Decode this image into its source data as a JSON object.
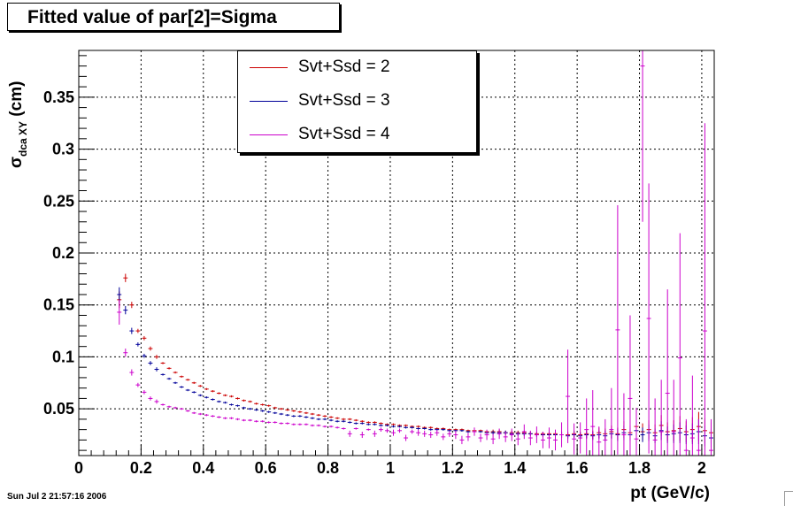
{
  "title": "Fitted value of par[2]=Sigma",
  "footer": "Sun Jul  2 21:57:16 2006",
  "chart_data": {
    "type": "scatter",
    "title": "Fitted value of par[2]=Sigma",
    "xlabel": "pt (GeV/c)",
    "ylabel_main": "σ",
    "ylabel_sub": "dca XY",
    "ylabel_unit": "(cm)",
    "xlim": [
      0,
      2.04
    ],
    "ylim": [
      0.005,
      0.395
    ],
    "xticks": [
      0,
      0.2,
      0.4,
      0.6,
      0.8,
      1,
      1.2,
      1.4,
      1.6,
      1.8,
      2
    ],
    "xtick_labels": [
      "0",
      "0.2",
      "0.4",
      "0.6",
      "0.8",
      "1",
      "1.2",
      "1.4",
      "1.6",
      "1.8",
      "2"
    ],
    "yticks": [
      0.05,
      0.1,
      0.15,
      0.2,
      0.25,
      0.3,
      0.35
    ],
    "ytick_labels": [
      "0.05",
      "0.1",
      "0.15",
      "0.2",
      "0.25",
      "0.3",
      "0.35"
    ],
    "grid": true,
    "legend_position": "top-center",
    "series": [
      {
        "name": "Svt+Ssd = 2",
        "color": "#cc0000",
        "x": [
          0.13,
          0.15,
          0.17,
          0.19,
          0.21,
          0.23,
          0.25,
          0.27,
          0.29,
          0.31,
          0.33,
          0.35,
          0.37,
          0.39,
          0.41,
          0.43,
          0.45,
          0.47,
          0.49,
          0.51,
          0.53,
          0.55,
          0.57,
          0.59,
          0.61,
          0.63,
          0.65,
          0.67,
          0.69,
          0.71,
          0.73,
          0.75,
          0.77,
          0.79,
          0.81,
          0.83,
          0.85,
          0.87,
          0.89,
          0.91,
          0.93,
          0.95,
          0.97,
          0.99,
          1.01,
          1.03,
          1.05,
          1.07,
          1.09,
          1.11,
          1.13,
          1.15,
          1.17,
          1.19,
          1.21,
          1.23,
          1.25,
          1.27,
          1.29,
          1.31,
          1.33,
          1.35,
          1.37,
          1.39,
          1.41,
          1.43,
          1.45,
          1.47,
          1.49,
          1.51,
          1.53,
          1.55,
          1.57,
          1.59,
          1.61,
          1.63,
          1.65,
          1.67,
          1.69,
          1.71,
          1.73,
          1.75,
          1.77,
          1.79,
          1.81,
          1.83,
          1.85,
          1.87,
          1.89,
          1.91,
          1.93,
          1.95,
          1.97,
          1.99,
          2.01,
          2.03
        ],
        "y": [
          0.155,
          0.176,
          0.15,
          0.125,
          0.118,
          0.108,
          0.1,
          0.094,
          0.089,
          0.085,
          0.081,
          0.078,
          0.075,
          0.072,
          0.069,
          0.067,
          0.065,
          0.063,
          0.062,
          0.06,
          0.058,
          0.057,
          0.055,
          0.054,
          0.053,
          0.051,
          0.05,
          0.049,
          0.048,
          0.047,
          0.046,
          0.045,
          0.044,
          0.043,
          0.042,
          0.041,
          0.04,
          0.04,
          0.039,
          0.038,
          0.037,
          0.037,
          0.036,
          0.035,
          0.035,
          0.034,
          0.034,
          0.033,
          0.033,
          0.032,
          0.032,
          0.031,
          0.031,
          0.03,
          0.03,
          0.03,
          0.029,
          0.029,
          0.029,
          0.028,
          0.028,
          0.028,
          0.027,
          0.027,
          0.027,
          0.027,
          0.026,
          0.026,
          0.026,
          0.026,
          0.026,
          0.025,
          0.025,
          0.026,
          0.025,
          0.026,
          0.025,
          0.027,
          0.026,
          0.028,
          0.026,
          0.03,
          0.027,
          0.033,
          0.028,
          0.03,
          0.027,
          0.034,
          0.028,
          0.029,
          0.031,
          0.028,
          0.03,
          0.033,
          0.029,
          0.027
        ],
        "err": [
          0.008,
          0.004,
          0.003,
          0.002,
          0.002,
          0.002,
          0.002,
          0.001,
          0.001,
          0.001,
          0.001,
          0.001,
          0.001,
          0.001,
          0.001,
          0.001,
          0.001,
          0.001,
          0.001,
          0.001,
          0.001,
          0.001,
          0.001,
          0.001,
          0.001,
          0.001,
          0.001,
          0.001,
          0.001,
          0.001,
          0.001,
          0.001,
          0.001,
          0.001,
          0.001,
          0.001,
          0.001,
          0.001,
          0.001,
          0.001,
          0.001,
          0.001,
          0.001,
          0.001,
          0.001,
          0.001,
          0.001,
          0.001,
          0.001,
          0.001,
          0.001,
          0.001,
          0.001,
          0.001,
          0.001,
          0.001,
          0.001,
          0.001,
          0.001,
          0.001,
          0.002,
          0.002,
          0.002,
          0.002,
          0.002,
          0.002,
          0.002,
          0.002,
          0.002,
          0.002,
          0.003,
          0.003,
          0.003,
          0.003,
          0.003,
          0.004,
          0.004,
          0.005,
          0.005,
          0.006,
          0.006,
          0.008,
          0.007,
          0.018,
          0.008,
          0.009,
          0.008,
          0.01,
          0.009,
          0.01,
          0.012,
          0.01,
          0.012,
          0.014,
          0.012,
          0.01
        ]
      },
      {
        "name": "Svt+Ssd = 3",
        "color": "#000099",
        "x": [
          0.13,
          0.15,
          0.17,
          0.19,
          0.21,
          0.23,
          0.25,
          0.27,
          0.29,
          0.31,
          0.33,
          0.35,
          0.37,
          0.39,
          0.41,
          0.43,
          0.45,
          0.47,
          0.49,
          0.51,
          0.53,
          0.55,
          0.57,
          0.59,
          0.61,
          0.63,
          0.65,
          0.67,
          0.69,
          0.71,
          0.73,
          0.75,
          0.77,
          0.79,
          0.81,
          0.83,
          0.85,
          0.87,
          0.89,
          0.91,
          0.93,
          0.95,
          0.97,
          0.99,
          1.01,
          1.03,
          1.05,
          1.07,
          1.09,
          1.11,
          1.13,
          1.15,
          1.17,
          1.19,
          1.21,
          1.23,
          1.25,
          1.27,
          1.29,
          1.31,
          1.33,
          1.35,
          1.37,
          1.39,
          1.41,
          1.43,
          1.45,
          1.47,
          1.49,
          1.51,
          1.53,
          1.55,
          1.57,
          1.59,
          1.61,
          1.63,
          1.65,
          1.67,
          1.69,
          1.71,
          1.73,
          1.75,
          1.77,
          1.79,
          1.81,
          1.83,
          1.85,
          1.87,
          1.89,
          1.91,
          1.93,
          1.95,
          1.97,
          1.99,
          2.01,
          2.03
        ],
        "y": [
          0.16,
          0.145,
          0.125,
          0.112,
          0.101,
          0.094,
          0.088,
          0.083,
          0.079,
          0.075,
          0.071,
          0.068,
          0.066,
          0.063,
          0.061,
          0.059,
          0.057,
          0.056,
          0.054,
          0.053,
          0.051,
          0.05,
          0.049,
          0.048,
          0.047,
          0.046,
          0.045,
          0.044,
          0.043,
          0.043,
          0.042,
          0.041,
          0.04,
          0.04,
          0.039,
          0.038,
          0.038,
          0.037,
          0.036,
          0.036,
          0.035,
          0.035,
          0.034,
          0.034,
          0.033,
          0.033,
          0.032,
          0.032,
          0.031,
          0.031,
          0.03,
          0.03,
          0.03,
          0.029,
          0.029,
          0.029,
          0.028,
          0.028,
          0.028,
          0.027,
          0.027,
          0.027,
          0.027,
          0.026,
          0.026,
          0.026,
          0.026,
          0.025,
          0.025,
          0.025,
          0.025,
          0.025,
          0.024,
          0.025,
          0.024,
          0.025,
          0.024,
          0.025,
          0.024,
          0.026,
          0.025,
          0.027,
          0.025,
          0.029,
          0.025,
          0.027,
          0.024,
          0.029,
          0.025,
          0.026,
          0.027,
          0.025,
          0.026,
          0.028,
          0.024,
          0.022
        ],
        "err": [
          0.007,
          0.004,
          0.003,
          0.002,
          0.002,
          0.002,
          0.002,
          0.001,
          0.001,
          0.001,
          0.001,
          0.001,
          0.001,
          0.001,
          0.001,
          0.001,
          0.001,
          0.001,
          0.001,
          0.001,
          0.001,
          0.001,
          0.001,
          0.001,
          0.001,
          0.001,
          0.001,
          0.001,
          0.001,
          0.001,
          0.001,
          0.001,
          0.001,
          0.001,
          0.001,
          0.001,
          0.001,
          0.001,
          0.001,
          0.001,
          0.001,
          0.001,
          0.001,
          0.001,
          0.001,
          0.001,
          0.001,
          0.001,
          0.001,
          0.001,
          0.001,
          0.001,
          0.001,
          0.001,
          0.001,
          0.001,
          0.001,
          0.001,
          0.001,
          0.001,
          0.002,
          0.002,
          0.002,
          0.002,
          0.002,
          0.002,
          0.002,
          0.002,
          0.002,
          0.002,
          0.003,
          0.003,
          0.003,
          0.003,
          0.003,
          0.004,
          0.004,
          0.004,
          0.005,
          0.005,
          0.006,
          0.007,
          0.006,
          0.009,
          0.007,
          0.008,
          0.007,
          0.009,
          0.008,
          0.009,
          0.01,
          0.009,
          0.01,
          0.012,
          0.01,
          0.009
        ]
      },
      {
        "name": "Svt+Ssd = 4",
        "color": "#cc00cc",
        "x": [
          0.13,
          0.15,
          0.17,
          0.19,
          0.21,
          0.23,
          0.25,
          0.27,
          0.29,
          0.31,
          0.33,
          0.35,
          0.37,
          0.39,
          0.41,
          0.43,
          0.45,
          0.47,
          0.49,
          0.51,
          0.53,
          0.55,
          0.57,
          0.59,
          0.61,
          0.63,
          0.65,
          0.67,
          0.69,
          0.71,
          0.73,
          0.75,
          0.77,
          0.79,
          0.81,
          0.83,
          0.85,
          0.87,
          0.89,
          0.91,
          0.93,
          0.95,
          0.97,
          0.99,
          1.01,
          1.03,
          1.05,
          1.07,
          1.09,
          1.11,
          1.13,
          1.15,
          1.17,
          1.19,
          1.21,
          1.23,
          1.25,
          1.27,
          1.29,
          1.31,
          1.33,
          1.35,
          1.37,
          1.39,
          1.41,
          1.43,
          1.45,
          1.47,
          1.49,
          1.51,
          1.53,
          1.55,
          1.57,
          1.59,
          1.61,
          1.63,
          1.65,
          1.67,
          1.69,
          1.71,
          1.73,
          1.75,
          1.77,
          1.79,
          1.81,
          1.83,
          1.85,
          1.87,
          1.89,
          1.91,
          1.93,
          1.95,
          1.97,
          1.99,
          2.01,
          2.03
        ],
        "y": [
          0.143,
          0.104,
          0.085,
          0.073,
          0.066,
          0.06,
          0.057,
          0.054,
          0.052,
          0.051,
          0.05,
          0.048,
          0.046,
          0.045,
          0.044,
          0.043,
          0.042,
          0.041,
          0.041,
          0.04,
          0.039,
          0.039,
          0.038,
          0.038,
          0.037,
          0.037,
          0.036,
          0.036,
          0.035,
          0.035,
          0.035,
          0.034,
          0.034,
          0.033,
          0.033,
          0.032,
          0.031,
          0.026,
          0.031,
          0.025,
          0.03,
          0.026,
          0.03,
          0.029,
          0.027,
          0.029,
          0.022,
          0.028,
          0.027,
          0.026,
          0.025,
          0.027,
          0.023,
          0.026,
          0.025,
          0.02,
          0.023,
          0.028,
          0.022,
          0.025,
          0.021,
          0.026,
          0.023,
          0.025,
          0.021,
          0.028,
          0.022,
          0.025,
          0.02,
          0.022,
          0.02,
          0.025,
          0.062,
          0.021,
          0.022,
          0.03,
          0.033,
          0.018,
          0.02,
          0.03,
          0.126,
          0.025,
          0.06,
          0.021,
          0.38,
          0.137,
          0.02,
          0.028,
          0.065,
          0.028,
          0.099,
          0.01,
          0.022,
          0.01,
          0.125,
          0.01
        ],
        "err": [
          0.012,
          0.004,
          0.003,
          0.002,
          0.002,
          0.002,
          0.002,
          0.001,
          0.001,
          0.001,
          0.001,
          0.001,
          0.001,
          0.001,
          0.001,
          0.001,
          0.001,
          0.001,
          0.001,
          0.001,
          0.001,
          0.001,
          0.001,
          0.001,
          0.001,
          0.001,
          0.001,
          0.001,
          0.001,
          0.001,
          0.001,
          0.001,
          0.001,
          0.001,
          0.001,
          0.001,
          0.001,
          0.003,
          0.001,
          0.003,
          0.001,
          0.003,
          0.002,
          0.002,
          0.003,
          0.002,
          0.003,
          0.002,
          0.003,
          0.003,
          0.003,
          0.003,
          0.003,
          0.003,
          0.004,
          0.004,
          0.004,
          0.004,
          0.004,
          0.005,
          0.005,
          0.005,
          0.005,
          0.006,
          0.006,
          0.007,
          0.007,
          0.008,
          0.008,
          0.01,
          0.01,
          0.012,
          0.045,
          0.015,
          0.015,
          0.03,
          0.035,
          0.015,
          0.02,
          0.04,
          0.12,
          0.04,
          0.08,
          0.03,
          0.15,
          0.13,
          0.04,
          0.05,
          0.1,
          0.05,
          0.12,
          0.03,
          0.06,
          0.03,
          0.2,
          0.03
        ]
      }
    ]
  }
}
